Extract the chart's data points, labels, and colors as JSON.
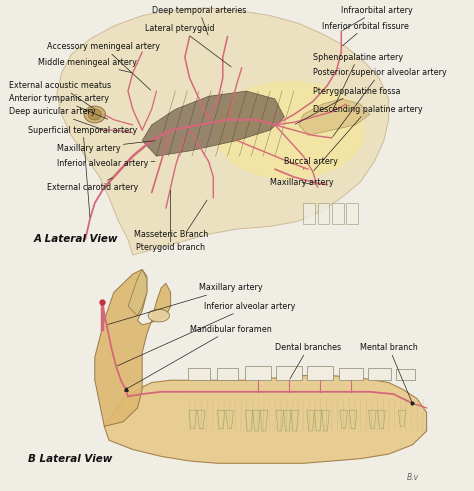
{
  "fig_bg": "#f0ede5",
  "panel_a_label": "A Lateral View",
  "panel_b_label": "B Lateral View",
  "watermark": "B.v",
  "skull_color": "#e8d49a",
  "skull_edge": "#b09060",
  "fossa_color": "#f0e0a0",
  "muscle_color": "#8b7060",
  "artery_color": "#d4687a",
  "tooth_color": "#f0ede0",
  "tooth_edge": "#909070",
  "text_color": "#111111",
  "line_color": "#222222",
  "ann_fs": 5.8,
  "label_fs": 7.5
}
